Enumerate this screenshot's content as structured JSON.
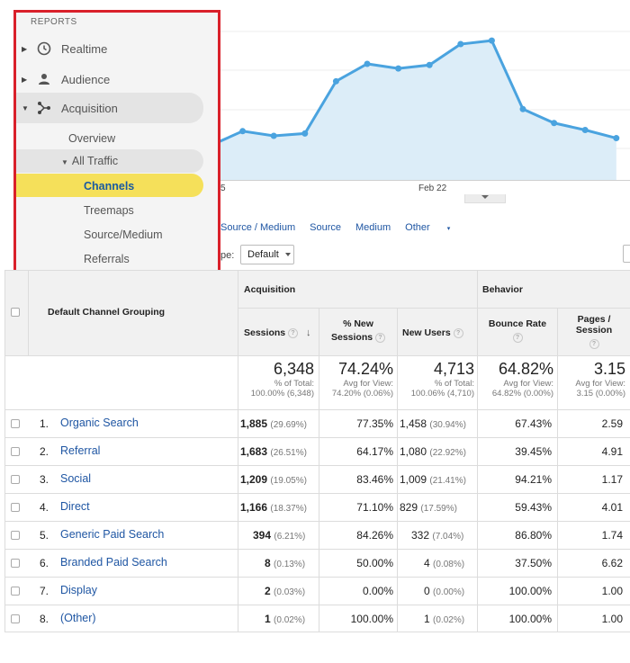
{
  "sidebar": {
    "section_title": "REPORTS",
    "items": [
      {
        "label": "Realtime",
        "icon": "clock-icon"
      },
      {
        "label": "Audience",
        "icon": "person-icon"
      },
      {
        "label": "Acquisition",
        "icon": "acquisition-icon"
      }
    ],
    "acquisition_sub": {
      "overview": "Overview",
      "all_traffic": "All Traffic",
      "channels": "Channels",
      "treemaps": "Treemaps",
      "source_medium": "Source/Medium",
      "referrals": "Referrals"
    }
  },
  "chart": {
    "x_label_left": "5",
    "x_label_mid": "Feb 22",
    "accent_line": "#4aa3df",
    "accent_fill": "#dcedf8"
  },
  "chart_data": {
    "type": "area",
    "title": "",
    "xlabel": "",
    "ylabel": "",
    "tick_labels": [
      "5",
      "Feb 22"
    ],
    "points": [
      {
        "x": 0,
        "y": 30
      },
      {
        "x": 1,
        "y": 42
      },
      {
        "x": 2,
        "y": 38
      },
      {
        "x": 3,
        "y": 40
      },
      {
        "x": 4,
        "y": 85
      },
      {
        "x": 5,
        "y": 100
      },
      {
        "x": 6,
        "y": 96
      },
      {
        "x": 7,
        "y": 99
      },
      {
        "x": 8,
        "y": 117
      },
      {
        "x": 9,
        "y": 120
      },
      {
        "x": 10,
        "y": 61
      },
      {
        "x": 11,
        "y": 49
      },
      {
        "x": 12,
        "y": 43
      },
      {
        "x": 13,
        "y": 36
      }
    ],
    "ylim": [
      0,
      155
    ]
  },
  "tabs": {
    "source_medium": "Source / Medium",
    "source": "Source",
    "medium": "Medium",
    "other": "Other"
  },
  "type_label": "pe:",
  "type_select_value": "Default",
  "table": {
    "dimension_header": "Default Channel Grouping",
    "group_acquisition": "Acquisition",
    "group_behavior": "Behavior",
    "col_sessions": "Sessions",
    "col_new_sessions_1": "% New",
    "col_new_sessions_2": "Sessions",
    "col_new_users": "New Users",
    "col_bounce": "Bounce Rate",
    "col_pages_1": "Pages /",
    "col_pages_2": "Session",
    "totals": {
      "sessions": "6,348",
      "sessions_sub1": "% of Total:",
      "sessions_sub2": "100.00% (6,348)",
      "new_sessions": "74.24%",
      "new_sessions_sub1": "Avg for View:",
      "new_sessions_sub2": "74.20% (0.06%)",
      "new_users": "4,713",
      "new_users_sub1": "% of Total:",
      "new_users_sub2": "100.06% (4,710)",
      "bounce": "64.82%",
      "bounce_sub1": "Avg for View:",
      "bounce_sub2": "64.82% (0.00%)",
      "pages": "3.15",
      "pages_sub1": "Avg for View:",
      "pages_sub2": "3.15 (0.00%)"
    },
    "rows": [
      {
        "idx": "1.",
        "channel": "Organic Search",
        "sessions": "1,885",
        "sessions_pct": "(29.69%)",
        "new_sessions": "77.35%",
        "new_users": "1,458",
        "new_users_pct": "(30.94%)",
        "bounce": "67.43%",
        "pages": "2.59"
      },
      {
        "idx": "2.",
        "channel": "Referral",
        "sessions": "1,683",
        "sessions_pct": "(26.51%)",
        "new_sessions": "64.17%",
        "new_users": "1,080",
        "new_users_pct": "(22.92%)",
        "bounce": "39.45%",
        "pages": "4.91"
      },
      {
        "idx": "3.",
        "channel": "Social",
        "sessions": "1,209",
        "sessions_pct": "(19.05%)",
        "new_sessions": "83.46%",
        "new_users": "1,009",
        "new_users_pct": "(21.41%)",
        "bounce": "94.21%",
        "pages": "1.17"
      },
      {
        "idx": "4.",
        "channel": "Direct",
        "sessions": "1,166",
        "sessions_pct": "(18.37%)",
        "new_sessions": "71.10%",
        "new_users": "829",
        "new_users_pct": "(17.59%)",
        "bounce": "59.43%",
        "pages": "4.01"
      },
      {
        "idx": "5.",
        "channel": "Generic Paid Search",
        "sessions": "394",
        "sessions_pct": "(6.21%)",
        "new_sessions": "84.26%",
        "new_users": "332",
        "new_users_pct": "(7.04%)",
        "bounce": "86.80%",
        "pages": "1.74"
      },
      {
        "idx": "6.",
        "channel": "Branded Paid Search",
        "sessions": "8",
        "sessions_pct": "(0.13%)",
        "new_sessions": "50.00%",
        "new_users": "4",
        "new_users_pct": "(0.08%)",
        "bounce": "37.50%",
        "pages": "6.62"
      },
      {
        "idx": "7.",
        "channel": "Display",
        "sessions": "2",
        "sessions_pct": "(0.03%)",
        "new_sessions": "0.00%",
        "new_users": "0",
        "new_users_pct": "(0.00%)",
        "bounce": "100.00%",
        "pages": "1.00"
      },
      {
        "idx": "8.",
        "channel": "(Other)",
        "sessions": "1",
        "sessions_pct": "(0.02%)",
        "new_sessions": "100.00%",
        "new_users": "1",
        "new_users_pct": "(0.02%)",
        "bounce": "100.00%",
        "pages": "1.00"
      }
    ]
  }
}
